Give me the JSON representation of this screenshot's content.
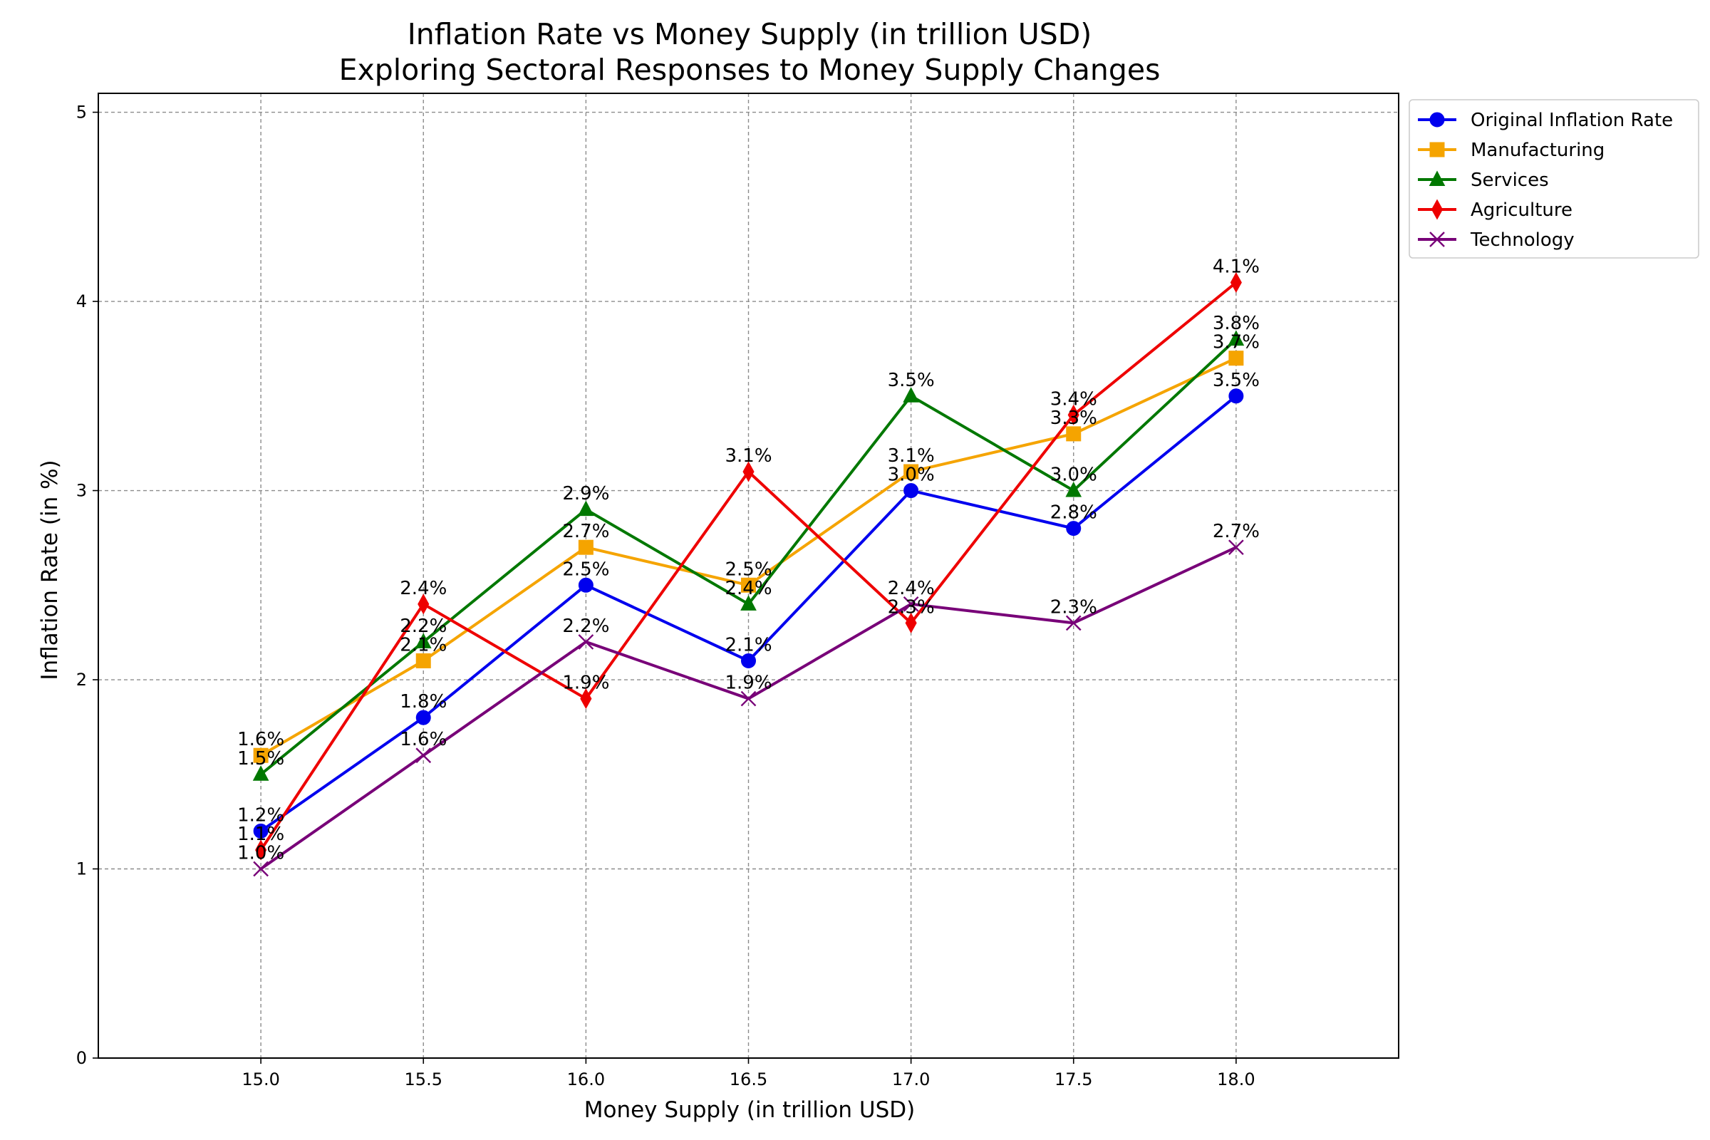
{
  "chart_data": {
    "type": "line",
    "title": "Inflation Rate vs Money Supply (in trillion USD)",
    "subtitle": "Exploring Sectoral Responses to Money Supply Changes",
    "xlabel": "Money Supply (in trillion USD)",
    "ylabel": "Inflation Rate (in %)",
    "x": [
      15.0,
      15.5,
      16.0,
      16.5,
      17.0,
      17.5,
      18.0
    ],
    "x_tick_labels": [
      "15.0",
      "15.5",
      "16.0",
      "16.5",
      "17.0",
      "17.5",
      "18.0"
    ],
    "xlim": [
      14.5,
      18.5
    ],
    "ylim": [
      0,
      5.1
    ],
    "y_ticks": [
      0,
      1,
      2,
      3,
      4,
      5
    ],
    "y_tick_labels": [
      "0",
      "1",
      "2",
      "3",
      "4",
      "5"
    ],
    "grid": true,
    "legend_position": "outside top-right",
    "series": [
      {
        "name": "Original Inflation Rate",
        "values": [
          1.2,
          1.8,
          2.5,
          2.1,
          3.0,
          2.8,
          3.5
        ],
        "point_labels": [
          "1.2%",
          "1.8%",
          "2.5%",
          "2.1%",
          "3.0%",
          "2.8%",
          "3.5%"
        ],
        "color": "#0000ee",
        "marker": "circle"
      },
      {
        "name": "Manufacturing",
        "values": [
          1.6,
          2.1,
          2.7,
          2.5,
          3.1,
          3.3,
          3.7
        ],
        "point_labels": [
          "1.6%",
          "2.1%",
          "2.7%",
          "2.5%",
          "3.1%",
          "3.3%",
          "3.7%"
        ],
        "color": "#f5a400",
        "marker": "square"
      },
      {
        "name": "Services",
        "values": [
          1.5,
          2.2,
          2.9,
          2.4,
          3.5,
          3.0,
          3.8
        ],
        "point_labels": [
          "1.5%",
          "2.2%",
          "2.9%",
          "2.4%",
          "3.5%",
          "3.0%",
          "3.8%"
        ],
        "color": "#007800",
        "marker": "triangle"
      },
      {
        "name": "Agriculture",
        "values": [
          1.1,
          2.4,
          1.9,
          3.1,
          2.3,
          3.4,
          4.1
        ],
        "point_labels": [
          "1.1%",
          "2.4%",
          "1.9%",
          "3.1%",
          "2.3%",
          "3.4%",
          "4.1%"
        ],
        "color": "#ee0000",
        "marker": "diamond"
      },
      {
        "name": "Technology",
        "values": [
          1.0,
          1.6,
          2.2,
          1.9,
          2.4,
          2.3,
          2.7
        ],
        "point_labels": [
          "1.0%",
          "1.6%",
          "2.2%",
          "1.9%",
          "2.4%",
          "2.3%",
          "2.7%"
        ],
        "color": "#780078",
        "marker": "x"
      }
    ]
  }
}
